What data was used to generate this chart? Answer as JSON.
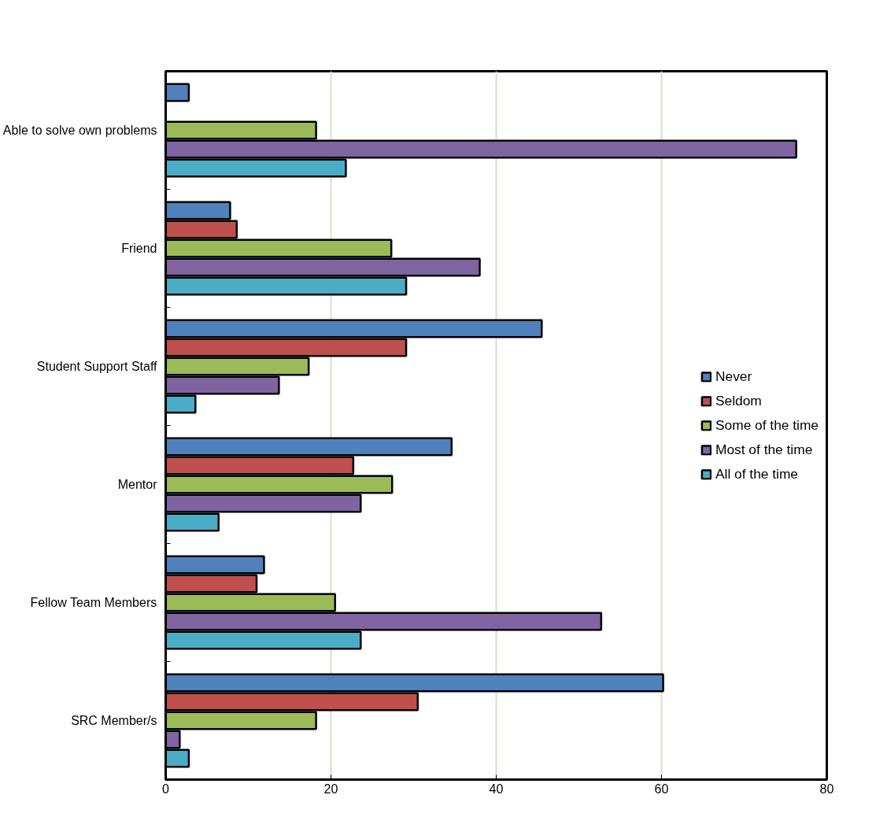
{
  "chart_data": {
    "type": "bar",
    "orientation": "horizontal",
    "categories": [
      "Able to solve own problems",
      "Friend",
      "Student Support Staff",
      "Mentor",
      "Fellow Team Members",
      "SRC Member/s"
    ],
    "series": [
      {
        "name": "Never",
        "color": "#4f81bd",
        "values": [
          2.8,
          7.8,
          45.5,
          34.6,
          11.9,
          60.2
        ]
      },
      {
        "name": "Seldom",
        "color": "#c0504d",
        "values": [
          null,
          8.6,
          29.1,
          22.7,
          11.0,
          30.5
        ]
      },
      {
        "name": "Some of the time",
        "color": "#9bbb59",
        "values": [
          18.2,
          27.3,
          17.3,
          27.4,
          20.5,
          18.2
        ]
      },
      {
        "name": "Most of the time",
        "color": "#8064a2",
        "values": [
          76.3,
          38.0,
          13.7,
          23.6,
          52.7,
          1.7
        ]
      },
      {
        "name": "All of the time",
        "color": "#4bacc6",
        "values": [
          21.8,
          29.1,
          3.6,
          6.4,
          23.6,
          2.8
        ]
      }
    ],
    "xlim": [
      0,
      80
    ],
    "xticks": [
      0,
      20,
      40,
      60,
      80
    ],
    "grid": "x",
    "legend": "right"
  }
}
